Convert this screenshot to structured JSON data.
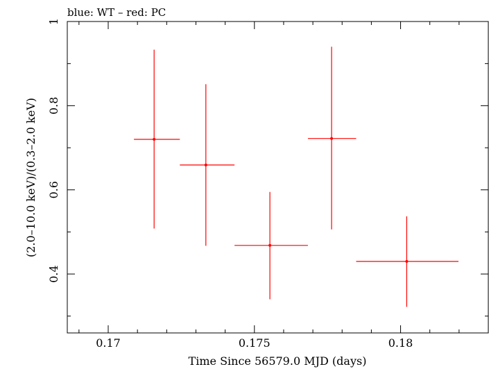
{
  "chart_data": {
    "type": "scatter",
    "title": "blue: WT – red: PC",
    "xlabel": "Time Since 56579.0 MJD (days)",
    "ylabel": "(2.0–10.0 keV)/(0.3–2.0 keV)",
    "xlim": [
      0.1686,
      0.183
    ],
    "ylim": [
      0.26,
      1.0
    ],
    "xticks": [
      0.17,
      0.175,
      0.18
    ],
    "xtick_labels": [
      "0.17",
      "0.175",
      "0.18"
    ],
    "yticks": [
      0.4,
      0.6,
      0.8,
      1.0
    ],
    "ytick_labels": [
      "0.4",
      "0.6",
      "0.8",
      "1"
    ],
    "grid": false,
    "series": [
      {
        "name": "PC",
        "color": "#ff0000",
        "points": [
          {
            "x": 0.17157,
            "y": 0.72,
            "xlo": 0.17088,
            "xhi": 0.17245,
            "ylo": 0.508,
            "yhi": 0.933
          },
          {
            "x": 0.17334,
            "y": 0.659,
            "xlo": 0.17245,
            "xhi": 0.17432,
            "ylo": 0.467,
            "yhi": 0.851
          },
          {
            "x": 0.17553,
            "y": 0.468,
            "xlo": 0.17432,
            "xhi": 0.17683,
            "ylo": 0.34,
            "yhi": 0.595
          },
          {
            "x": 0.17764,
            "y": 0.722,
            "xlo": 0.17683,
            "xhi": 0.17848,
            "ylo": 0.506,
            "yhi": 0.94
          },
          {
            "x": 0.18021,
            "y": 0.43,
            "xlo": 0.17848,
            "xhi": 0.18198,
            "ylo": 0.322,
            "yhi": 0.537
          }
        ]
      }
    ]
  }
}
